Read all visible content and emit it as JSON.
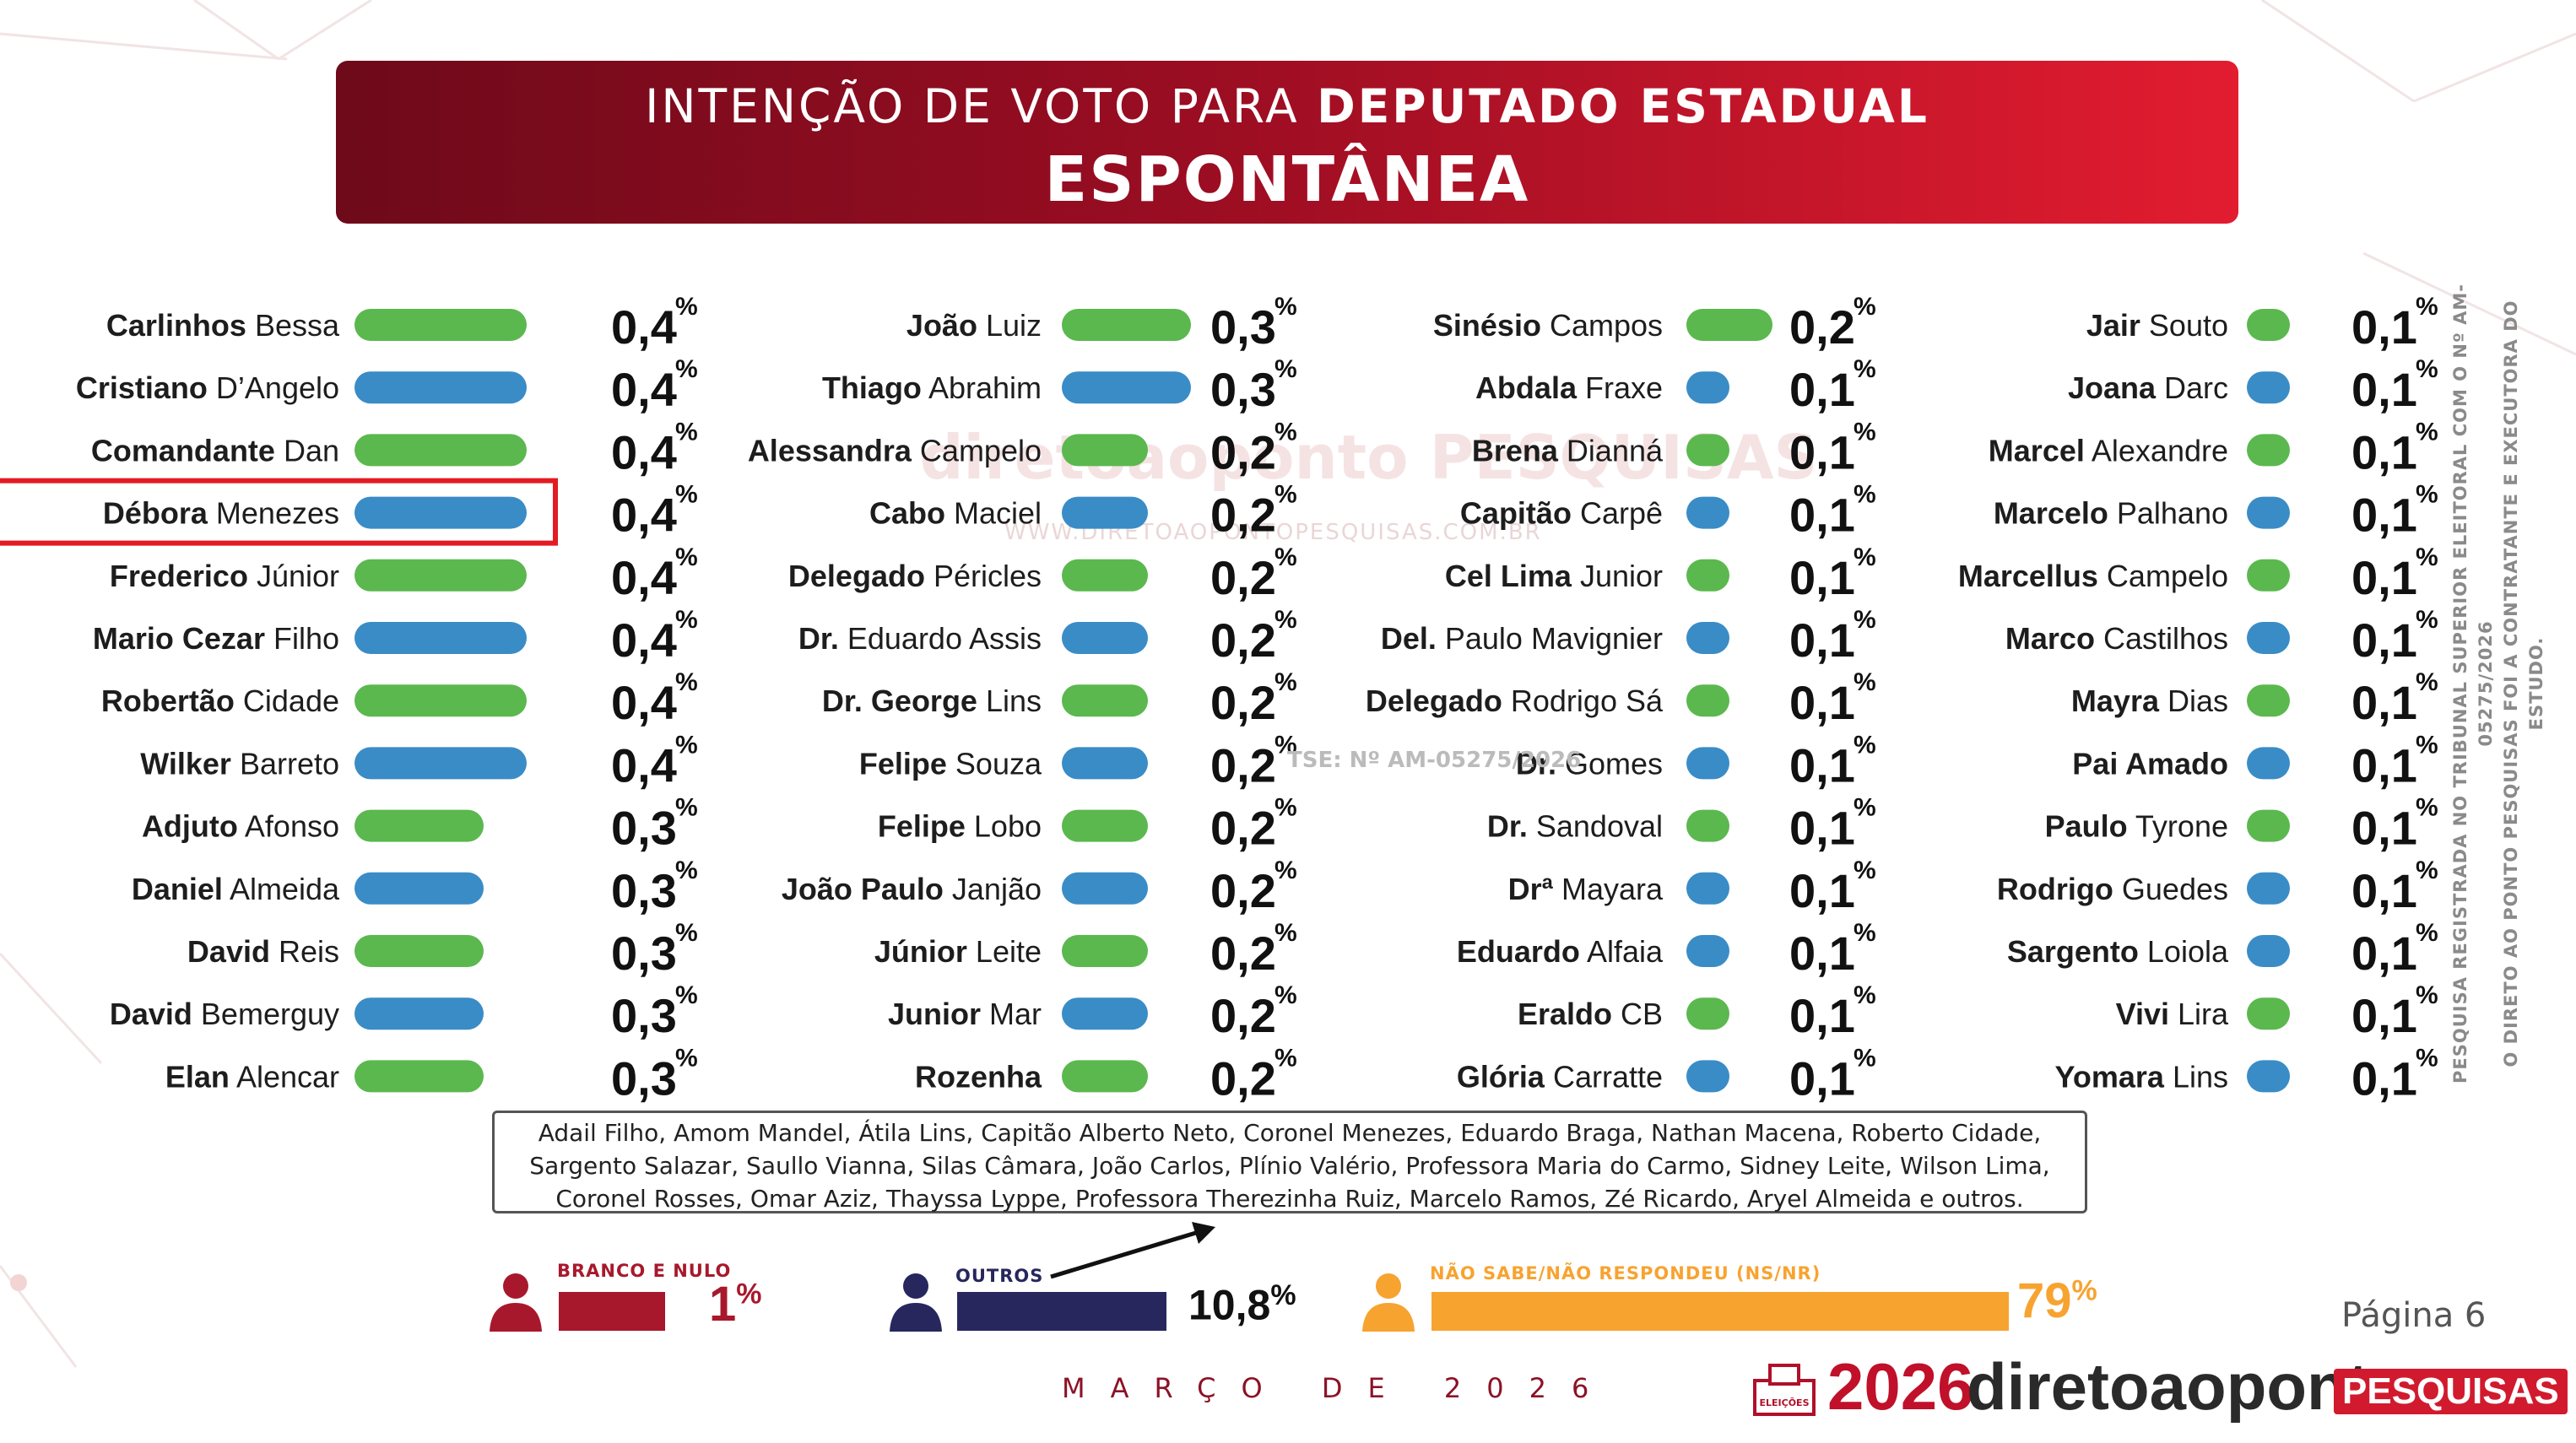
{
  "header": {
    "title_part1": "INTENÇÃO DE VOTO PARA",
    "title_part2": "DEPUTADO ESTADUAL",
    "subtitle": "ESPONTÂNEA"
  },
  "colors": {
    "green": "#5bb84e",
    "blue": "#3a8cc6",
    "red": "#e31b23",
    "maroon": "#a8182c",
    "navy": "#27275e",
    "orange": "#f7a330"
  },
  "watermark": {
    "brand": "diretoaoponto PESQUISAS",
    "url": "WWW.DIRETOAOPONTOPESQUISAS.COM.BR"
  },
  "tse_stamp": "TSE: Nº AM-05275/2026",
  "chart_data": {
    "type": "bar",
    "unit": "%",
    "highlighted": "Débora Menezes",
    "candidates": [
      {
        "first": "Carlinhos",
        "rest": "Bessa",
        "value": 0.4,
        "label": "0,4",
        "color": "green"
      },
      {
        "first": "Cristiano",
        "rest": "D’Angelo",
        "value": 0.4,
        "label": "0,4",
        "color": "blue"
      },
      {
        "first": "Comandante",
        "rest": "Dan",
        "value": 0.4,
        "label": "0,4",
        "color": "green"
      },
      {
        "first": "Débora",
        "rest": "Menezes",
        "value": 0.4,
        "label": "0,4",
        "color": "blue"
      },
      {
        "first": "Frederico",
        "rest": "Júnior",
        "value": 0.4,
        "label": "0,4",
        "color": "green"
      },
      {
        "first": "Mario Cezar",
        "rest": "Filho",
        "value": 0.4,
        "label": "0,4",
        "color": "blue"
      },
      {
        "first": "Robertão",
        "rest": "Cidade",
        "value": 0.4,
        "label": "0,4",
        "color": "green"
      },
      {
        "first": "Wilker",
        "rest": "Barreto",
        "value": 0.4,
        "label": "0,4",
        "color": "blue"
      },
      {
        "first": "Adjuto",
        "rest": "Afonso",
        "value": 0.3,
        "label": "0,3",
        "color": "green"
      },
      {
        "first": "Daniel",
        "rest": "Almeida",
        "value": 0.3,
        "label": "0,3",
        "color": "blue"
      },
      {
        "first": "David",
        "rest": "Reis",
        "value": 0.3,
        "label": "0,3",
        "color": "green"
      },
      {
        "first": "David",
        "rest": "Bemerguy",
        "value": 0.3,
        "label": "0,3",
        "color": "blue"
      },
      {
        "first": "Elan",
        "rest": "Alencar",
        "value": 0.3,
        "label": "0,3",
        "color": "green"
      },
      {
        "first": "João",
        "rest": "Luiz",
        "value": 0.3,
        "label": "0,3",
        "color": "green"
      },
      {
        "first": "Thiago",
        "rest": "Abrahim",
        "value": 0.3,
        "label": "0,3",
        "color": "blue"
      },
      {
        "first": "Alessandra",
        "rest": "Campelo",
        "value": 0.2,
        "label": "0,2",
        "color": "green"
      },
      {
        "first": "Cabo",
        "rest": "Maciel",
        "value": 0.2,
        "label": "0,2",
        "color": "blue"
      },
      {
        "first": "Delegado",
        "rest": "Péricles",
        "value": 0.2,
        "label": "0,2",
        "color": "green"
      },
      {
        "first": "Dr.",
        "rest": "Eduardo Assis",
        "value": 0.2,
        "label": "0,2",
        "color": "blue"
      },
      {
        "first": "Dr. George",
        "rest": "Lins",
        "value": 0.2,
        "label": "0,2",
        "color": "green"
      },
      {
        "first": "Felipe",
        "rest": "Souza",
        "value": 0.2,
        "label": "0,2",
        "color": "blue"
      },
      {
        "first": "Felipe",
        "rest": "Lobo",
        "value": 0.2,
        "label": "0,2",
        "color": "green"
      },
      {
        "first": "João Paulo",
        "rest": "Janjão",
        "value": 0.2,
        "label": "0,2",
        "color": "blue"
      },
      {
        "first": "Júnior",
        "rest": "Leite",
        "value": 0.2,
        "label": "0,2",
        "color": "green"
      },
      {
        "first": "Junior",
        "rest": "Mar",
        "value": 0.2,
        "label": "0,2",
        "color": "blue"
      },
      {
        "first": "Rozenha",
        "rest": "",
        "value": 0.2,
        "label": "0,2",
        "color": "green"
      },
      {
        "first": "Sinésio",
        "rest": "Campos",
        "value": 0.2,
        "label": "0,2",
        "color": "green"
      },
      {
        "first": "Abdala",
        "rest": "Fraxe",
        "value": 0.1,
        "label": "0,1",
        "color": "blue"
      },
      {
        "first": "Brena",
        "rest": "Dianná",
        "value": 0.1,
        "label": "0,1",
        "color": "green"
      },
      {
        "first": "Capitão",
        "rest": "Carpê",
        "value": 0.1,
        "label": "0,1",
        "color": "blue"
      },
      {
        "first": "Cel Lima",
        "rest": "Junior",
        "value": 0.1,
        "label": "0,1",
        "color": "green"
      },
      {
        "first": "Del.",
        "rest": "Paulo Mavignier",
        "value": 0.1,
        "label": "0,1",
        "color": "blue"
      },
      {
        "first": "Delegado",
        "rest": "Rodrigo Sá",
        "value": 0.1,
        "label": "0,1",
        "color": "green"
      },
      {
        "first": "Dr.",
        "rest": "Gomes",
        "value": 0.1,
        "label": "0,1",
        "color": "blue"
      },
      {
        "first": "Dr.",
        "rest": "Sandoval",
        "value": 0.1,
        "label": "0,1",
        "color": "green"
      },
      {
        "first": "Drª",
        "rest": "Mayara",
        "value": 0.1,
        "label": "0,1",
        "color": "blue"
      },
      {
        "first": "Eduardo",
        "rest": "Alfaia",
        "value": 0.1,
        "label": "0,1",
        "color": "blue"
      },
      {
        "first": "Eraldo",
        "rest": "CB",
        "value": 0.1,
        "label": "0,1",
        "color": "green"
      },
      {
        "first": "Glória",
        "rest": "Carratte",
        "value": 0.1,
        "label": "0,1",
        "color": "blue"
      },
      {
        "first": "Jair",
        "rest": "Souto",
        "value": 0.1,
        "label": "0,1",
        "color": "green"
      },
      {
        "first": "Joana",
        "rest": "Darc",
        "value": 0.1,
        "label": "0,1",
        "color": "blue"
      },
      {
        "first": "Marcel",
        "rest": "Alexandre",
        "value": 0.1,
        "label": "0,1",
        "color": "green"
      },
      {
        "first": "Marcelo",
        "rest": "Palhano",
        "value": 0.1,
        "label": "0,1",
        "color": "blue"
      },
      {
        "first": "Marcellus",
        "rest": "Campelo",
        "value": 0.1,
        "label": "0,1",
        "color": "green"
      },
      {
        "first": "Marco",
        "rest": "Castilhos",
        "value": 0.1,
        "label": "0,1",
        "color": "blue"
      },
      {
        "first": "Mayra",
        "rest": "Dias",
        "value": 0.1,
        "label": "0,1",
        "color": "green"
      },
      {
        "first": "Pai Amado",
        "rest": "",
        "value": 0.1,
        "label": "0,1",
        "color": "blue"
      },
      {
        "first": "Paulo",
        "rest": "Tyrone",
        "value": 0.1,
        "label": "0,1",
        "color": "green"
      },
      {
        "first": "Rodrigo",
        "rest": "Guedes",
        "value": 0.1,
        "label": "0,1",
        "color": "blue"
      },
      {
        "first": "Sargento",
        "rest": "Loiola",
        "value": 0.1,
        "label": "0,1",
        "color": "blue"
      },
      {
        "first": "Vivi",
        "rest": "Lira",
        "value": 0.1,
        "label": "0,1",
        "color": "green"
      },
      {
        "first": "Yomara",
        "rest": "Lins",
        "value": 0.1,
        "label": "0,1",
        "color": "blue"
      }
    ],
    "summary": [
      {
        "label": "BRANCO E NULO",
        "value": 1,
        "display": "1",
        "unit": "%",
        "color": "maroon"
      },
      {
        "label": "OUTROS",
        "value": 10.8,
        "display": "10,8",
        "unit": "%",
        "color": "navy"
      },
      {
        "label": "NÃO SABE/NÃO RESPONDEU  (NS/NR)",
        "value": 79,
        "display": "79",
        "unit": "%",
        "color": "orange"
      }
    ]
  },
  "others_note": "Adail Filho, Amom Mandel, Átila Lins, Capitão Alberto Neto, Coronel Menezes, Eduardo Braga, Nathan Macena, Roberto Cidade, Sargento Salazar, Saullo Vianna, Silas Câmara, João Carlos, Plínio Valério, Professora Maria do Carmo, Sidney Leite, Wilson Lima, Coronel Rosses, Omar Aziz, Thayssa Lyppe, Professora Therezinha Ruiz, Marcelo Ramos, Zé Ricardo, Aryel Almeida e outros.",
  "side_note": {
    "line1": "PESQUISA REGISTRADA NO TRIBUNAL SUPERIOR ELEITORAL COM O Nº AM-05275/2026",
    "line2": "O DIRETO AO PONTO PESQUISAS FOI A CONTRATANTE E EXECUTORA DO ESTUDO."
  },
  "footer": {
    "page": "Página 6",
    "date": "MARÇO DE 2026",
    "logo_year": "2026",
    "logo_brand": "diretoaoponto",
    "logo_pesquisas": "PESQUISAS",
    "logo_eleicoes": "ELEIÇÕES"
  }
}
